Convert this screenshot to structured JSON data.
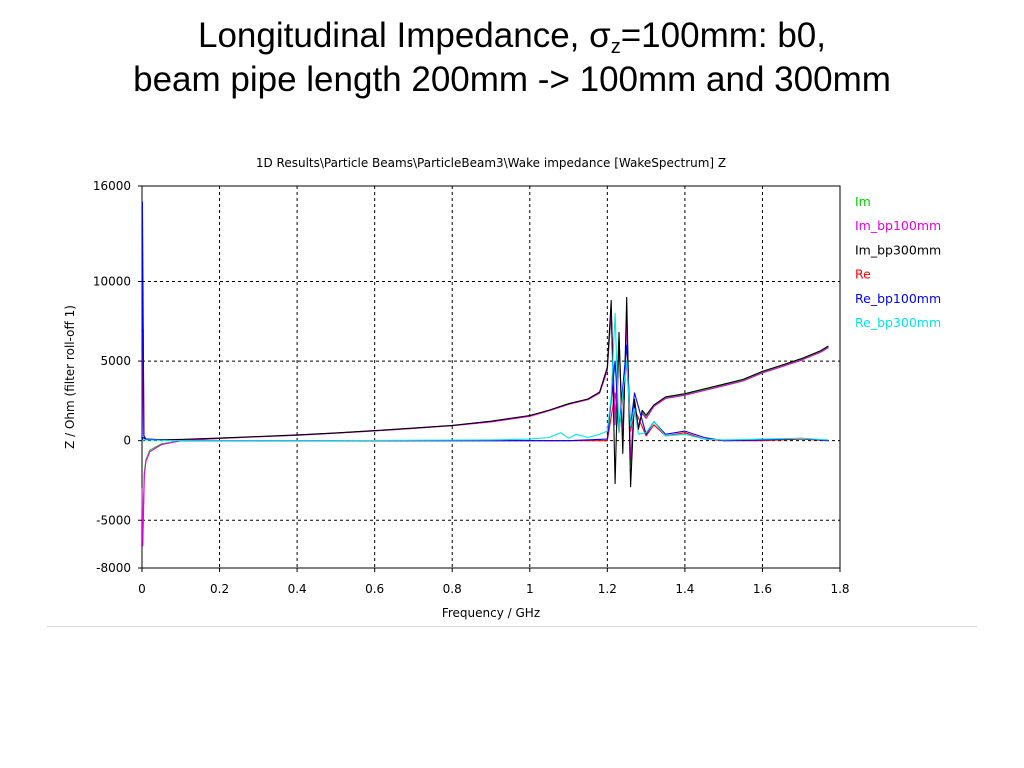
{
  "slide": {
    "title_line1_a": "Longitudinal Impedance, σ",
    "title_line1_sub": "z",
    "title_line1_b": "=100mm: b0,",
    "title_line2": "beam pipe length 200mm -> 100mm and 300mm"
  },
  "chart_data": {
    "type": "line",
    "title": "1D Results\\Particle Beams\\ParticleBeam3\\Wake impedance [WakeSpectrum] Z",
    "xlabel": "Frequency / GHz",
    "ylabel": "Z / Ohm (filter roll-off 1)",
    "xlim": [
      0,
      1.8
    ],
    "ylim": [
      -8000,
      16000
    ],
    "xticks": [
      0,
      0.2,
      0.4,
      0.6,
      0.8,
      1,
      1.2,
      1.4,
      1.6,
      1.8
    ],
    "xtick_labels": [
      "0",
      "0.2",
      "0.4",
      "0.6",
      "0.8",
      "1",
      "1.2",
      "1.4",
      "1.6",
      "1.8"
    ],
    "yticks": [
      -8000,
      -5000,
      0,
      5000,
      10000,
      16000
    ],
    "ytick_labels": [
      "-8000",
      "-5000",
      "0",
      "5000",
      "10000",
      "16000"
    ],
    "grid": true,
    "legend_position": "right",
    "series": [
      {
        "name": "Im",
        "color": "#00cc00",
        "x": [
          0,
          0.002,
          0.006,
          0.01,
          0.02,
          0.05,
          0.1,
          0.2,
          0.3,
          0.4,
          0.5,
          0.6,
          0.7,
          0.8,
          0.9,
          1.0,
          1.05,
          1.1,
          1.15,
          1.18,
          1.2,
          1.21,
          1.22,
          1.23,
          1.24,
          1.25,
          1.26,
          1.27,
          1.28,
          1.29,
          1.3,
          1.32,
          1.35,
          1.4,
          1.45,
          1.5,
          1.55,
          1.6,
          1.65,
          1.7,
          1.75,
          1.77
        ],
        "y": [
          -3000,
          -6000,
          -2000,
          -1200,
          -600,
          -200,
          0,
          150,
          250,
          350,
          480,
          620,
          780,
          950,
          1200,
          1550,
          1900,
          2300,
          2600,
          3000,
          4500,
          8000,
          1200,
          6500,
          200,
          7800,
          -1500,
          2500,
          800,
          1800,
          1500,
          2200,
          2700,
          2900,
          3200,
          3500,
          3800,
          4300,
          4700,
          5100,
          5600,
          5900
        ]
      },
      {
        "name": "Im_bp100mm",
        "color": "#e600e6",
        "x": [
          0,
          0.002,
          0.006,
          0.01,
          0.02,
          0.05,
          0.1,
          0.2,
          0.3,
          0.4,
          0.5,
          0.6,
          0.7,
          0.8,
          0.9,
          1.0,
          1.05,
          1.1,
          1.15,
          1.18,
          1.2,
          1.21,
          1.22,
          1.23,
          1.24,
          1.25,
          1.26,
          1.27,
          1.28,
          1.29,
          1.3,
          1.32,
          1.35,
          1.4,
          1.45,
          1.5,
          1.55,
          1.6,
          1.65,
          1.7,
          1.75,
          1.77
        ],
        "y": [
          -3000,
          -6600,
          -2200,
          -1300,
          -700,
          -250,
          0,
          140,
          240,
          340,
          470,
          610,
          770,
          940,
          1180,
          1530,
          1880,
          2280,
          2580,
          2980,
          4400,
          8300,
          1000,
          6300,
          0,
          7600,
          -1200,
          2400,
          900,
          1700,
          1400,
          2150,
          2650,
          2850,
          3150,
          3450,
          3750,
          4250,
          4650,
          5050,
          5550,
          5850
        ]
      },
      {
        "name": "Im_bp300mm",
        "color": "#000000",
        "x": [
          0,
          0.002,
          0.006,
          0.01,
          0.02,
          0.05,
          0.1,
          0.2,
          0.3,
          0.4,
          0.5,
          0.6,
          0.7,
          0.8,
          0.9,
          1.0,
          1.05,
          1.1,
          1.15,
          1.18,
          1.2,
          1.21,
          1.22,
          1.23,
          1.24,
          1.25,
          1.26,
          1.27,
          1.28,
          1.29,
          1.3,
          1.32,
          1.35,
          1.4,
          1.45,
          1.5,
          1.55,
          1.6,
          1.65,
          1.7,
          1.75,
          1.77
        ],
        "y": [
          0,
          200,
          150,
          100,
          80,
          60,
          80,
          160,
          260,
          360,
          490,
          630,
          790,
          960,
          1220,
          1580,
          1920,
          2320,
          2620,
          3050,
          4600,
          8800,
          -2700,
          6800,
          -800,
          9000,
          -2900,
          2600,
          700,
          1900,
          1600,
          2250,
          2750,
          2950,
          3250,
          3550,
          3850,
          4350,
          4750,
          5150,
          5650,
          5950
        ]
      },
      {
        "name": "Re",
        "color": "#ff0000",
        "x": [
          0,
          0.003,
          0.005,
          0.01,
          0.1,
          0.5,
          1.0,
          1.1,
          1.2,
          1.22,
          1.23,
          1.25,
          1.26,
          1.27,
          1.3,
          1.32,
          1.35,
          1.4,
          1.45,
          1.5,
          1.6,
          1.7,
          1.77
        ],
        "y": [
          0,
          7000,
          300,
          100,
          0,
          0,
          0,
          0,
          0,
          3000,
          500,
          5000,
          600,
          2000,
          300,
          1000,
          300,
          500,
          100,
          0,
          0,
          100,
          0
        ]
      },
      {
        "name": "Re_bp100mm",
        "color": "#0000ff",
        "x": [
          0,
          0.001,
          0.003,
          0.005,
          0.01,
          0.1,
          0.5,
          1.0,
          1.1,
          1.2,
          1.22,
          1.23,
          1.25,
          1.26,
          1.27,
          1.3,
          1.32,
          1.35,
          1.4,
          1.45,
          1.5,
          1.6,
          1.7,
          1.77
        ],
        "y": [
          0,
          15000,
          7500,
          300,
          100,
          0,
          0,
          0,
          0,
          100,
          5000,
          800,
          6000,
          900,
          3000,
          400,
          1200,
          400,
          600,
          200,
          0,
          50,
          150,
          0
        ]
      },
      {
        "name": "Re_bp300mm",
        "color": "#00e6e6",
        "x": [
          0,
          0.005,
          0.1,
          0.5,
          0.9,
          1.0,
          1.05,
          1.08,
          1.1,
          1.12,
          1.15,
          1.18,
          1.2,
          1.21,
          1.22,
          1.23,
          1.24,
          1.25,
          1.26,
          1.27,
          1.28,
          1.3,
          1.32,
          1.35,
          1.4,
          1.45,
          1.5,
          1.6,
          1.7,
          1.77
        ],
        "y": [
          0,
          50,
          0,
          0,
          50,
          100,
          200,
          500,
          150,
          400,
          200,
          400,
          600,
          2800,
          8000,
          500,
          3000,
          5000,
          900,
          2000,
          400,
          500,
          1200,
          300,
          400,
          100,
          50,
          100,
          150,
          50
        ]
      }
    ]
  }
}
